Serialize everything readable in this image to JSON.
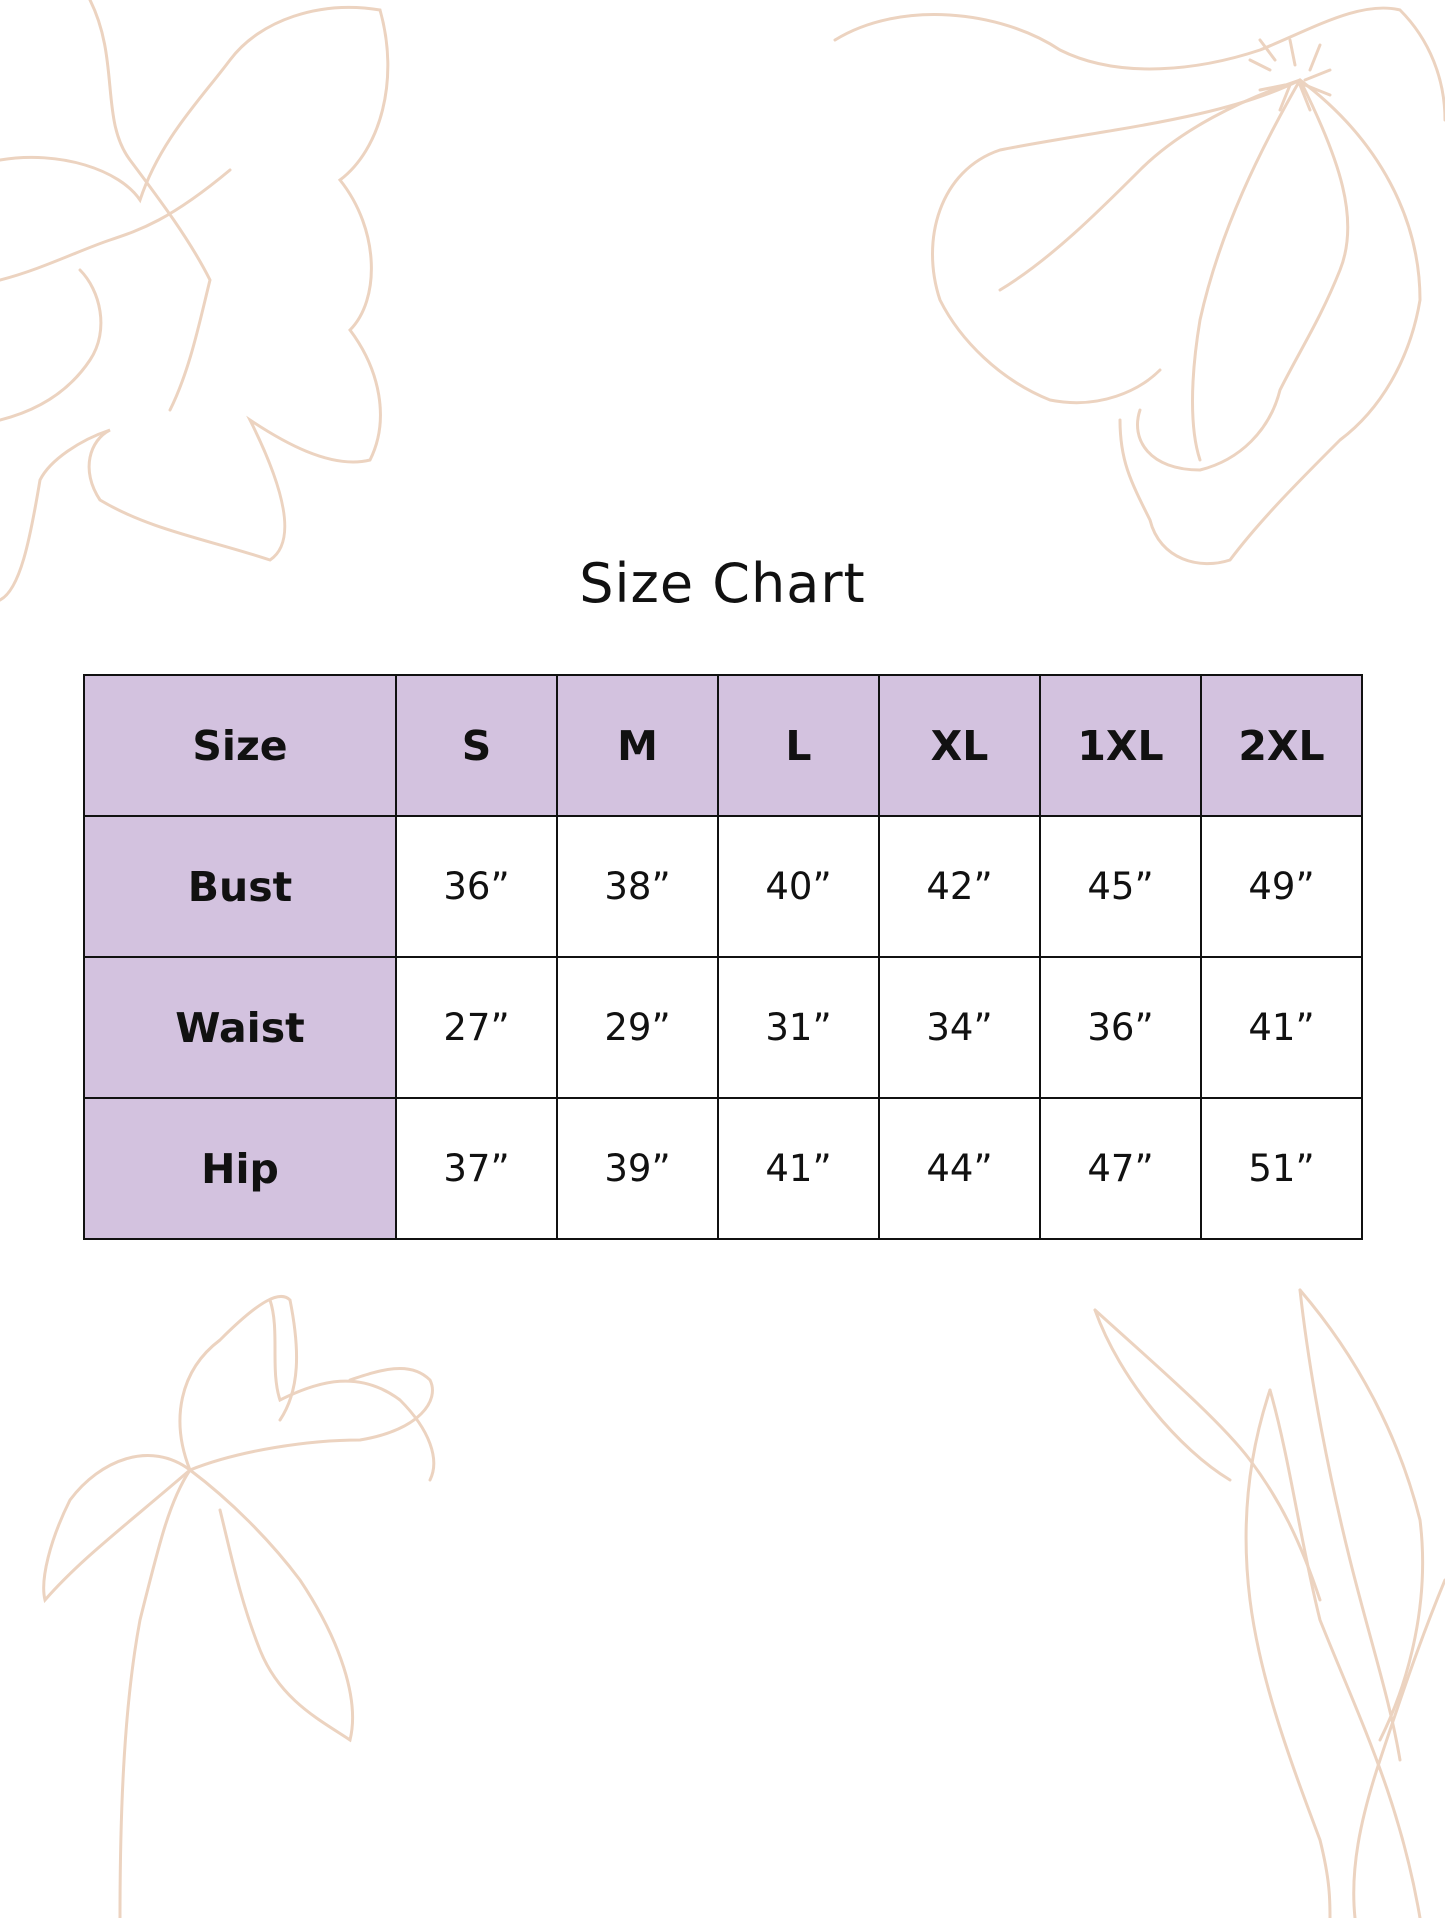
{
  "title": "Size Chart",
  "colors": {
    "header_fill": "#d3c2df",
    "border": "#111111",
    "decoration": "#ecd3c0"
  },
  "decoration": "floral line drawings",
  "table": {
    "header": [
      "Size",
      "S",
      "M",
      "L",
      "XL",
      "1XL",
      "2XL"
    ],
    "rows": [
      {
        "label": "Bust",
        "values": [
          "36”",
          "38”",
          "40”",
          "42”",
          "45”",
          "49”"
        ]
      },
      {
        "label": "Waist",
        "values": [
          "27”",
          "29”",
          "31”",
          "34”",
          "36”",
          "41”"
        ]
      },
      {
        "label": "Hip",
        "values": [
          "37”",
          "39”",
          "41”",
          "44”",
          "47”",
          "51”"
        ]
      }
    ]
  }
}
